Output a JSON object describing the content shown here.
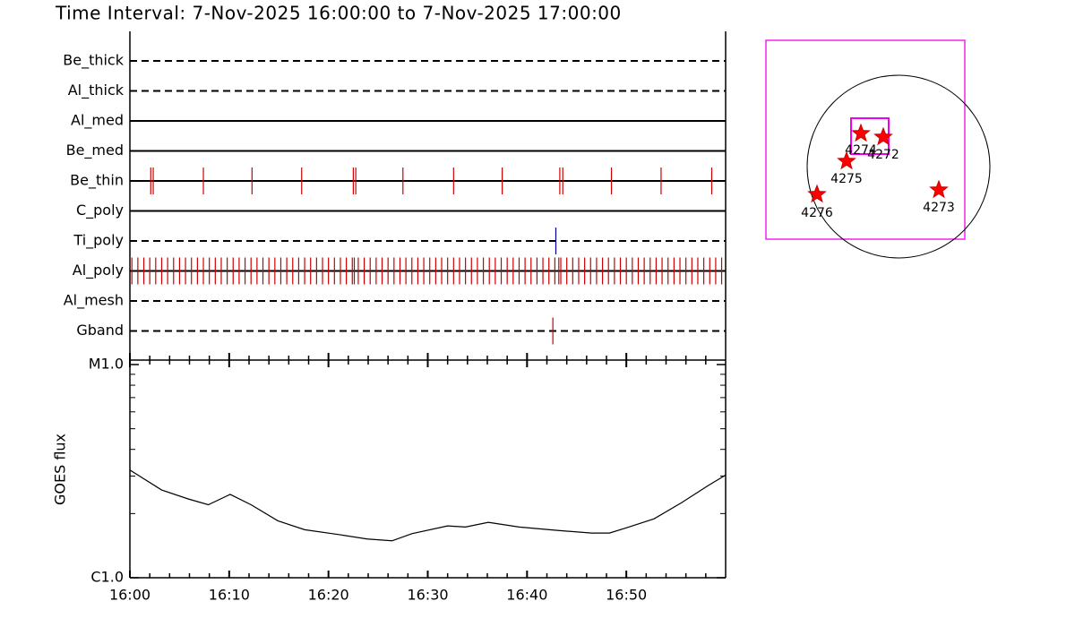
{
  "chart_data": [
    {
      "type": "event",
      "title": "Time Interval:  7-Nov-2025 16:00:00 to  7-Nov-2025 17:00:00",
      "xlim": [
        0,
        60
      ],
      "xticks": [
        {
          "value": 0,
          "label": "16:00"
        },
        {
          "value": 10,
          "label": "16:10"
        },
        {
          "value": 20,
          "label": "16:20"
        },
        {
          "value": 30,
          "label": "16:30"
        },
        {
          "value": 40,
          "label": "16:40"
        },
        {
          "value": 50,
          "label": "16:50"
        }
      ],
      "xminorticks": [
        2,
        4,
        6,
        8,
        12,
        14,
        16,
        18,
        22,
        24,
        26,
        28,
        32,
        34,
        36,
        38,
        42,
        44,
        46,
        48,
        52,
        54,
        56,
        58
      ],
      "rows": [
        {
          "name": "Be_thick",
          "line": "dashed",
          "color": "#cc0000",
          "times": []
        },
        {
          "name": "Al_thick",
          "line": "dashed",
          "color": "#cc0000",
          "times": []
        },
        {
          "name": "Al_med",
          "line": "solid",
          "color": "#cc0000",
          "times": []
        },
        {
          "name": "Be_med",
          "line": "solid",
          "color": "#cc0000",
          "times": []
        },
        {
          "name": "Be_thin",
          "line": "solid",
          "color": "#cc0000",
          "times": [
            2.1,
            2.35,
            7.4,
            12.3,
            17.3,
            22.5,
            22.75,
            27.5,
            32.6,
            37.5,
            43.3,
            43.6,
            48.5,
            53.5,
            58.6
          ]
        },
        {
          "name": "C_poly",
          "line": "solid",
          "color": "#cc0000",
          "times": []
        },
        {
          "name": "Ti_poly",
          "line": "dashed",
          "color": "#000099",
          "times": [
            42.9
          ]
        },
        {
          "name": "Al_poly",
          "line": "solid",
          "color": "#cc0000",
          "times": [
            0.2,
            0.8,
            1.4,
            2.0,
            2.6,
            3.2,
            3.8,
            4.4,
            5.0,
            5.6,
            6.2,
            6.8,
            7.4,
            8.0,
            8.6,
            9.2,
            9.8,
            10.4,
            11.0,
            11.6,
            12.2,
            12.8,
            13.4,
            14.0,
            14.6,
            15.2,
            15.8,
            16.4,
            17.0,
            17.6,
            18.2,
            18.8,
            19.4,
            20.0,
            20.6,
            21.2,
            21.8,
            22.4,
            22.6,
            23.0,
            23.6,
            24.2,
            24.8,
            25.4,
            26.0,
            26.6,
            27.2,
            27.8,
            28.4,
            29.0,
            29.6,
            30.2,
            30.8,
            31.4,
            32.0,
            32.6,
            33.2,
            33.8,
            34.4,
            35.0,
            35.6,
            36.2,
            36.8,
            37.4,
            38.0,
            38.6,
            39.2,
            39.8,
            40.4,
            41.0,
            41.6,
            42.2,
            42.8,
            43.2,
            43.4,
            44.0,
            44.6,
            45.2,
            45.8,
            46.4,
            47.0,
            47.6,
            48.2,
            48.8,
            49.4,
            50.0,
            50.6,
            51.2,
            51.8,
            52.4,
            53.0,
            53.6,
            54.2,
            54.8,
            55.4,
            56.0,
            56.6,
            57.2,
            57.8,
            58.4,
            59.0,
            59.6
          ]
        },
        {
          "name": "Al_mesh",
          "line": "dashed",
          "color": "#cc0000",
          "times": []
        },
        {
          "name": "Gband",
          "line": "dashed",
          "color": "#cc0000",
          "times": [
            42.6
          ]
        }
      ]
    },
    {
      "type": "line",
      "ylabel": "GOES flux",
      "log": true,
      "ylim": [
        1e-06,
        1e-05
      ],
      "yticks": [
        {
          "value": 1e-06,
          "label": "C1.0"
        },
        {
          "value": 1e-05,
          "label": "M1.0"
        }
      ],
      "yminorticks": [
        2e-06,
        3e-06,
        4e-06,
        5e-06,
        6e-06,
        7e-06,
        8e-06,
        9e-06
      ],
      "xlim": [
        0,
        60
      ],
      "x": [
        0,
        3.2,
        5.9,
        7.9,
        10.1,
        12.2,
        14.9,
        17.6,
        21.2,
        23.9,
        26.4,
        28.4,
        32.0,
        33.8,
        36.1,
        39.2,
        42.9,
        46.5,
        48.3,
        50.1,
        52.8,
        55.5,
        58.2,
        60
      ],
      "series": [
        {
          "color": "#000000",
          "values": [
            3.2e-06,
            2.58e-06,
            2.34e-06,
            2.2e-06,
            2.46e-06,
            2.2e-06,
            1.85e-06,
            1.68e-06,
            1.59e-06,
            1.52e-06,
            1.49e-06,
            1.61e-06,
            1.75e-06,
            1.73e-06,
            1.82e-06,
            1.73e-06,
            1.67e-06,
            1.62e-06,
            1.62e-06,
            1.72e-06,
            1.89e-06,
            2.24e-06,
            2.7e-06,
            3.03e-06
          ]
        }
      ]
    }
  ],
  "map": {
    "regions": [
      {
        "label": "4274"
      },
      {
        "label": "4272"
      },
      {
        "label": "4275"
      },
      {
        "label": "4276"
      },
      {
        "label": "4273"
      }
    ]
  }
}
